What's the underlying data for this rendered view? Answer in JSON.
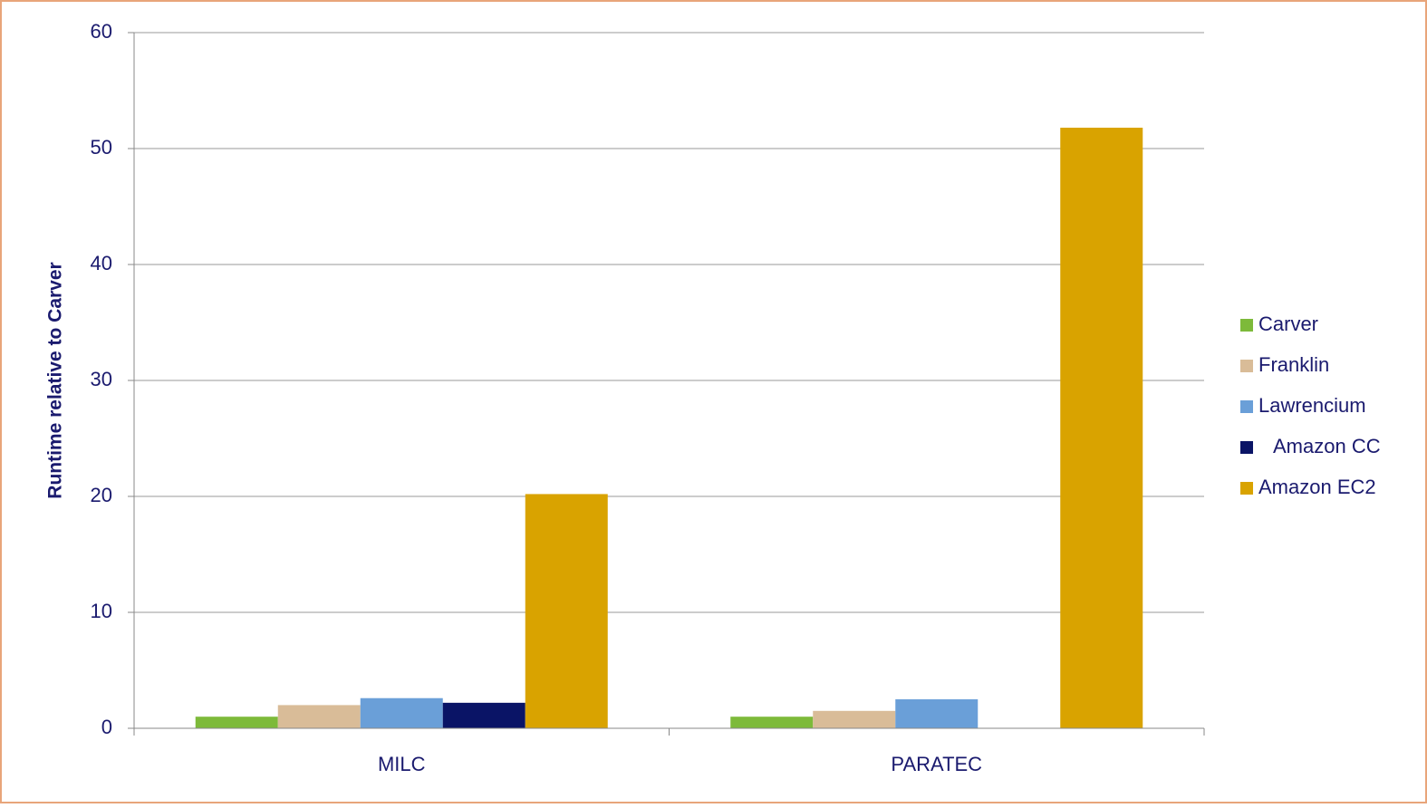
{
  "chart_data": {
    "type": "bar",
    "ylabel": "Runtime relative to Carver",
    "categories": [
      "MILC",
      "PARATEC"
    ],
    "series": [
      {
        "name": "Carver",
        "color": "#7dba3a",
        "values": [
          1.0,
          1.0
        ]
      },
      {
        "name": "Franklin",
        "color": "#d9bc98",
        "values": [
          2.0,
          1.5
        ]
      },
      {
        "name": "Lawrencium",
        "color": "#6a9fd8",
        "values": [
          2.6,
          2.5
        ]
      },
      {
        "name": "Amazon CC",
        "color": "#0a1466",
        "values": [
          2.2,
          null
        ]
      },
      {
        "name": "Amazon EC2",
        "color": "#d9a300",
        "values": [
          20.2,
          51.8
        ]
      }
    ],
    "ylim": [
      0,
      60
    ],
    "yticks": [
      0,
      10,
      20,
      30,
      40,
      50,
      60
    ],
    "grid": true,
    "legend": "right"
  }
}
